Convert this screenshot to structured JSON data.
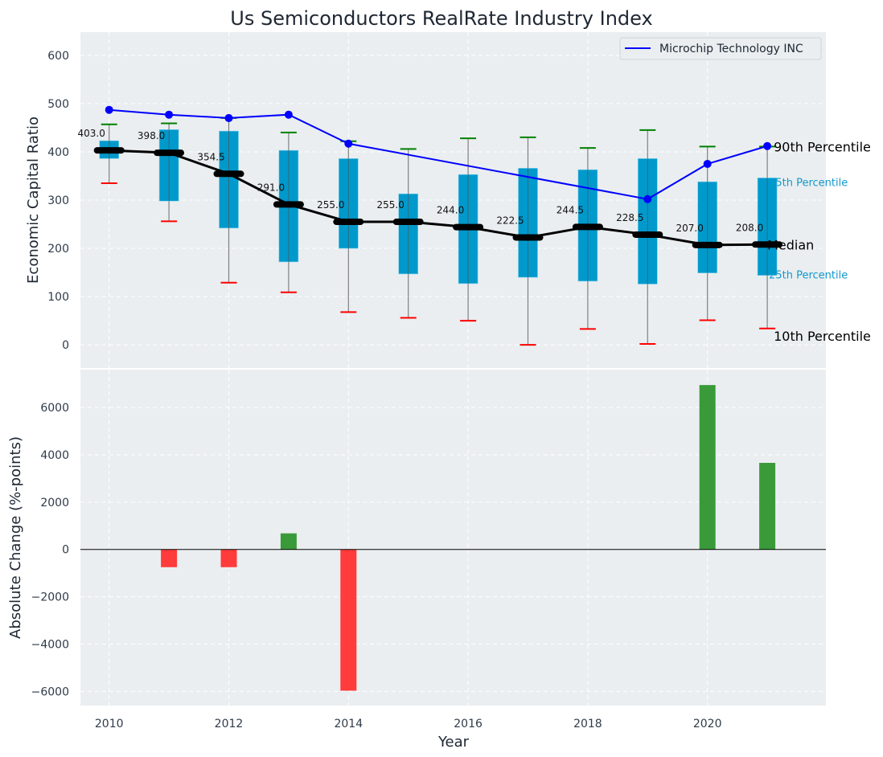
{
  "chart_data": [
    {
      "type": "box-with-line",
      "title": "Us Semiconductors RealRate Industry Index",
      "xlabel": "Year",
      "ylabel": "Economic Capital Ratio",
      "ylim": [
        0,
        600
      ],
      "yticks": [
        0,
        100,
        200,
        300,
        400,
        500,
        600
      ],
      "xlim": [
        2009.52,
        2021.98
      ],
      "grid": true,
      "legend": {
        "placement": "top-right",
        "entries": [
          "Microchip Technology INC"
        ]
      },
      "years": [
        2010,
        2011,
        2012,
        2013,
        2014,
        2015,
        2016,
        2017,
        2018,
        2019,
        2020,
        2021
      ],
      "p90": [
        457,
        459,
        470,
        440,
        422,
        406,
        428,
        430,
        408,
        445,
        411,
        411
      ],
      "p75": [
        423,
        446,
        443,
        403,
        386,
        313,
        353,
        366,
        363,
        386,
        338,
        346
      ],
      "median": [
        403.0,
        398.0,
        354.5,
        291.0,
        255.0,
        255.0,
        244.0,
        222.5,
        244.5,
        228.5,
        207.0,
        208.0
      ],
      "median_labels": [
        "403.0",
        "398.0",
        "354.5",
        "291.0",
        "255.0",
        "255.0",
        "244.0",
        "222.5",
        "244.5",
        "228.5",
        "207.0",
        "208.0"
      ],
      "p25": [
        386,
        298,
        242,
        172,
        200,
        147,
        127,
        140,
        132,
        126,
        149,
        144
      ],
      "p10": [
        335,
        256,
        129,
        109,
        68,
        56,
        50,
        0,
        33,
        2,
        51,
        34
      ],
      "series": [
        {
          "name": "Microchip Technology INC",
          "x": [
            2010,
            2011,
            2012,
            2013,
            2014,
            2019,
            2020,
            2021
          ],
          "values": [
            487,
            477,
            470,
            477,
            417,
            302,
            375,
            412
          ]
        }
      ],
      "annotations": {
        "p90": "90th Percentile",
        "p75": "75th Percentile",
        "median": "Median",
        "p25": "25th Percentile",
        "p10": "10th Percentile"
      },
      "colors": {
        "box": "#0099cc",
        "p90": "#008000",
        "p10": "#ff0000",
        "median": "#000000",
        "series": "#0000ff",
        "whisker": "#808080",
        "pct_label": "#1199cc"
      }
    },
    {
      "type": "bar",
      "xlabel": "Year",
      "ylabel": "Absolute Change (%-points)",
      "ylim": [
        -6600,
        7600
      ],
      "yticks": [
        -6000,
        -4000,
        -2000,
        0,
        2000,
        4000,
        6000
      ],
      "ytick_labels": [
        "−6000",
        "−4000",
        "−2000",
        "0",
        "2000",
        "4000",
        "6000"
      ],
      "xticks": [
        2010,
        2012,
        2014,
        2016,
        2018,
        2020
      ],
      "years": [
        2010,
        2011,
        2012,
        2013,
        2014,
        2015,
        2016,
        2017,
        2018,
        2019,
        2020,
        2021
      ],
      "values": [
        0,
        -750,
        -750,
        680,
        -5970,
        0,
        0,
        0,
        0,
        0,
        6950,
        3660
      ],
      "colors": {
        "positive": "#3a9a3a",
        "negative": "#ff3b3b"
      }
    }
  ]
}
